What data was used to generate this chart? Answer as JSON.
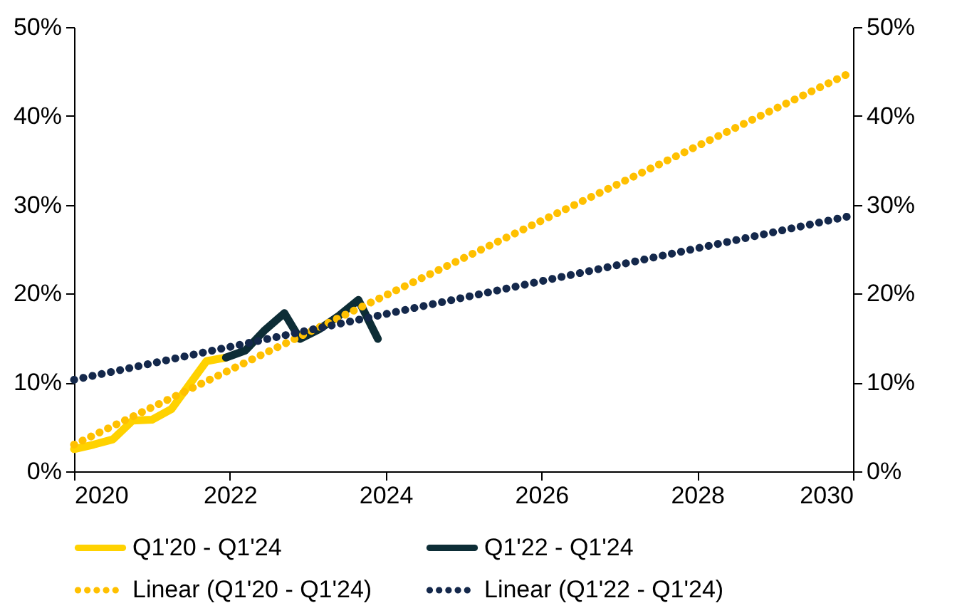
{
  "chart_data": {
    "type": "line",
    "xlim": [
      2020,
      2030
    ],
    "xticks": [
      2020,
      2022,
      2024,
      2026,
      2028,
      2030
    ],
    "ylim": [
      0,
      50
    ],
    "yticks": [
      {
        "value": 0,
        "label": "0%"
      },
      {
        "value": 10,
        "label": "10%"
      },
      {
        "value": 20,
        "label": "20%"
      },
      {
        "value": 30,
        "label": "30%"
      },
      {
        "value": 40,
        "label": "40%"
      },
      {
        "value": 50,
        "label": "50%"
      }
    ],
    "y2lim": [
      0,
      50
    ],
    "y2ticks": [
      {
        "value": 0,
        "label": "0%"
      },
      {
        "value": 10,
        "label": "10%"
      },
      {
        "value": 20,
        "label": "20%"
      },
      {
        "value": 30,
        "label": "30%"
      },
      {
        "value": 40,
        "label": "40%"
      },
      {
        "value": 50,
        "label": "50%"
      }
    ],
    "grid": false,
    "legend": "bottom",
    "series": [
      {
        "name": "Q1'20 - Q1'24",
        "color": "#ffd200",
        "line_style": "solid",
        "x": [
          2020.0,
          2020.25,
          2020.5,
          2020.75,
          2021.0,
          2021.25,
          2021.5,
          2021.7,
          2021.95
        ],
        "values": [
          2.5,
          3.0,
          3.6,
          5.7,
          5.8,
          7.0,
          10.0,
          12.4,
          12.8
        ]
      },
      {
        "name": "Q1'22 - Q1'24",
        "color": "#0d2d36",
        "line_style": "solid",
        "x": [
          2021.95,
          2022.2,
          2022.45,
          2022.7,
          2022.9,
          2023.15,
          2023.4,
          2023.65,
          2023.9
        ],
        "values": [
          12.8,
          13.6,
          15.9,
          17.8,
          14.9,
          16.0,
          17.5,
          19.3,
          14.9
        ]
      },
      {
        "name": "Linear (Q1'20 - Q1'24)",
        "color": "#ffc000",
        "line_style": "dotted",
        "x": [
          2020,
          2030
        ],
        "values": [
          3.0,
          45.0
        ]
      },
      {
        "name": "Linear (Q1'22 - Q1'24)",
        "color": "#14284b",
        "line_style": "dotted",
        "x": [
          2020,
          2030
        ],
        "values": [
          10.3,
          28.8
        ]
      }
    ]
  }
}
